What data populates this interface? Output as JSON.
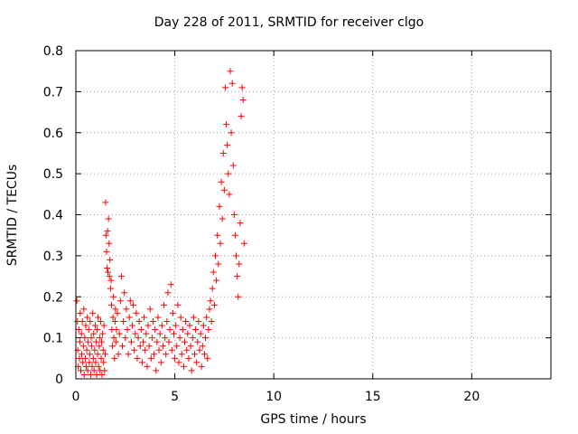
{
  "chart_data": {
    "type": "scatter",
    "title": "Day 228 of 2011, SRMTID for receiver clgo",
    "xlabel": "GPS time / hours",
    "ylabel": "SRMTID / TECUs",
    "xlim": [
      0,
      24
    ],
    "ylim": [
      0,
      0.8
    ],
    "xticks": [
      0,
      5,
      10,
      15,
      20
    ],
    "yticks": [
      0,
      0.1,
      0.2,
      0.3,
      0.4,
      0.5,
      0.6,
      0.7,
      0.8
    ],
    "grid": true,
    "legend": "none",
    "marker": "+",
    "series_color": "#ff0000",
    "points": [
      [
        0.05,
        0.19
      ],
      [
        0.08,
        0.14
      ],
      [
        0.1,
        0.07
      ],
      [
        0.12,
        0.03
      ],
      [
        0.15,
        0.12
      ],
      [
        0.18,
        0.05
      ],
      [
        0.2,
        0.09
      ],
      [
        0.22,
        0.16
      ],
      [
        0.25,
        0.02
      ],
      [
        0.28,
        0.11
      ],
      [
        0.3,
        0.06
      ],
      [
        0.33,
        0.14
      ],
      [
        0.35,
        0.04
      ],
      [
        0.38,
        0.08
      ],
      [
        0.4,
        0.17
      ],
      [
        0.42,
        0.01
      ],
      [
        0.45,
        0.1
      ],
      [
        0.48,
        0.05
      ],
      [
        0.5,
        0.13
      ],
      [
        0.52,
        0.03
      ],
      [
        0.55,
        0.07
      ],
      [
        0.58,
        0.15
      ],
      [
        0.6,
        0.02
      ],
      [
        0.62,
        0.09
      ],
      [
        0.65,
        0.12
      ],
      [
        0.68,
        0.04
      ],
      [
        0.7,
        0.06
      ],
      [
        0.72,
        0.14
      ],
      [
        0.75,
        0.01
      ],
      [
        0.78,
        0.1
      ],
      [
        0.8,
        0.08
      ],
      [
        0.82,
        0.03
      ],
      [
        0.85,
        0.16
      ],
      [
        0.88,
        0.05
      ],
      [
        0.9,
        0.11
      ],
      [
        0.92,
        0.02
      ],
      [
        0.95,
        0.07
      ],
      [
        0.98,
        0.13
      ],
      [
        1.0,
        0.04
      ],
      [
        1.02,
        0.09
      ],
      [
        1.05,
        0.01
      ],
      [
        1.08,
        0.12
      ],
      [
        1.1,
        0.06
      ],
      [
        1.12,
        0.15
      ],
      [
        1.15,
        0.03
      ],
      [
        1.18,
        0.08
      ],
      [
        1.2,
        0.1
      ],
      [
        1.22,
        0.02
      ],
      [
        1.25,
        0.14
      ],
      [
        1.28,
        0.05
      ],
      [
        1.3,
        0.09
      ],
      [
        1.32,
        0.01
      ],
      [
        1.35,
        0.11
      ],
      [
        1.38,
        0.07
      ],
      [
        1.4,
        0.04
      ],
      [
        1.42,
        0.13
      ],
      [
        1.45,
        0.02
      ],
      [
        1.48,
        0.06
      ],
      [
        1.5,
        0.43
      ],
      [
        1.52,
        0.35
      ],
      [
        1.55,
        0.31
      ],
      [
        1.58,
        0.27
      ],
      [
        1.6,
        0.36
      ],
      [
        1.62,
        0.26
      ],
      [
        1.65,
        0.39
      ],
      [
        1.68,
        0.33
      ],
      [
        1.7,
        0.25
      ],
      [
        1.72,
        0.29
      ],
      [
        1.75,
        0.22
      ],
      [
        1.78,
        0.24
      ],
      [
        1.8,
        0.18
      ],
      [
        1.82,
        0.12
      ],
      [
        1.85,
        0.08
      ],
      [
        1.88,
        0.15
      ],
      [
        1.9,
        0.2
      ],
      [
        1.92,
        0.1
      ],
      [
        1.95,
        0.05
      ],
      [
        1.98,
        0.14
      ],
      [
        2.0,
        0.17
      ],
      [
        2.02,
        0.09
      ],
      [
        2.05,
        0.12
      ],
      [
        2.1,
        0.16
      ],
      [
        2.15,
        0.06
      ],
      [
        2.2,
        0.11
      ],
      [
        2.25,
        0.19
      ],
      [
        2.3,
        0.25
      ],
      [
        2.35,
        0.08
      ],
      [
        2.4,
        0.14
      ],
      [
        2.45,
        0.21
      ],
      [
        2.5,
        0.1
      ],
      [
        2.55,
        0.17
      ],
      [
        2.6,
        0.12
      ],
      [
        2.65,
        0.06
      ],
      [
        2.7,
        0.15
      ],
      [
        2.75,
        0.19
      ],
      [
        2.8,
        0.09
      ],
      [
        2.85,
        0.13
      ],
      [
        2.9,
        0.18
      ],
      [
        2.95,
        0.07
      ],
      [
        3.0,
        0.11
      ],
      [
        3.05,
        0.16
      ],
      [
        3.1,
        0.05
      ],
      [
        3.15,
        0.1
      ],
      [
        3.2,
        0.14
      ],
      [
        3.25,
        0.08
      ],
      [
        3.3,
        0.12
      ],
      [
        3.35,
        0.04
      ],
      [
        3.4,
        0.09
      ],
      [
        3.45,
        0.15
      ],
      [
        3.5,
        0.07
      ],
      [
        3.55,
        0.11
      ],
      [
        3.6,
        0.03
      ],
      [
        3.65,
        0.13
      ],
      [
        3.7,
        0.08
      ],
      [
        3.75,
        0.17
      ],
      [
        3.8,
        0.05
      ],
      [
        3.85,
        0.1
      ],
      [
        3.9,
        0.14
      ],
      [
        3.95,
        0.06
      ],
      [
        4.0,
        0.12
      ],
      [
        4.05,
        0.02
      ],
      [
        4.1,
        0.09
      ],
      [
        4.15,
        0.15
      ],
      [
        4.2,
        0.07
      ],
      [
        4.25,
        0.11
      ],
      [
        4.3,
        0.04
      ],
      [
        4.35,
        0.13
      ],
      [
        4.4,
        0.08
      ],
      [
        4.45,
        0.18
      ],
      [
        4.5,
        0.1
      ],
      [
        4.55,
        0.06
      ],
      [
        4.6,
        0.14
      ],
      [
        4.65,
        0.21
      ],
      [
        4.7,
        0.09
      ],
      [
        4.75,
        0.12
      ],
      [
        4.8,
        0.23
      ],
      [
        4.85,
        0.07
      ],
      [
        4.9,
        0.16
      ],
      [
        4.95,
        0.11
      ],
      [
        5.0,
        0.05
      ],
      [
        5.05,
        0.13
      ],
      [
        5.1,
        0.08
      ],
      [
        5.15,
        0.18
      ],
      [
        5.2,
        0.04
      ],
      [
        5.25,
        0.1
      ],
      [
        5.3,
        0.15
      ],
      [
        5.35,
        0.06
      ],
      [
        5.4,
        0.12
      ],
      [
        5.45,
        0.03
      ],
      [
        5.5,
        0.09
      ],
      [
        5.55,
        0.14
      ],
      [
        5.6,
        0.07
      ],
      [
        5.65,
        0.11
      ],
      [
        5.7,
        0.05
      ],
      [
        5.75,
        0.13
      ],
      [
        5.8,
        0.08
      ],
      [
        5.85,
        0.02
      ],
      [
        5.9,
        0.1
      ],
      [
        5.95,
        0.15
      ],
      [
        6.0,
        0.06
      ],
      [
        6.05,
        0.12
      ],
      [
        6.1,
        0.04
      ],
      [
        6.15,
        0.09
      ],
      [
        6.2,
        0.14
      ],
      [
        6.25,
        0.07
      ],
      [
        6.3,
        0.11
      ],
      [
        6.35,
        0.03
      ],
      [
        6.4,
        0.08
      ],
      [
        6.45,
        0.13
      ],
      [
        6.5,
        0.06
      ],
      [
        6.55,
        0.1
      ],
      [
        6.6,
        0.15
      ],
      [
        6.65,
        0.05
      ],
      [
        6.7,
        0.12
      ],
      [
        6.75,
        0.17
      ],
      [
        6.8,
        0.19
      ],
      [
        6.85,
        0.14
      ],
      [
        6.9,
        0.22
      ],
      [
        6.95,
        0.26
      ],
      [
        7.0,
        0.18
      ],
      [
        7.05,
        0.3
      ],
      [
        7.1,
        0.24
      ],
      [
        7.15,
        0.35
      ],
      [
        7.2,
        0.28
      ],
      [
        7.25,
        0.42
      ],
      [
        7.3,
        0.33
      ],
      [
        7.35,
        0.48
      ],
      [
        7.4,
        0.39
      ],
      [
        7.45,
        0.55
      ],
      [
        7.5,
        0.46
      ],
      [
        7.55,
        0.71
      ],
      [
        7.6,
        0.62
      ],
      [
        7.65,
        0.57
      ],
      [
        7.7,
        0.5
      ],
      [
        7.75,
        0.45
      ],
      [
        7.8,
        0.75
      ],
      [
        7.85,
        0.6
      ],
      [
        7.9,
        0.72
      ],
      [
        7.95,
        0.52
      ],
      [
        8.0,
        0.4
      ],
      [
        8.05,
        0.35
      ],
      [
        8.1,
        0.3
      ],
      [
        8.15,
        0.25
      ],
      [
        8.2,
        0.2
      ],
      [
        8.25,
        0.28
      ],
      [
        8.3,
        0.38
      ],
      [
        8.35,
        0.64
      ],
      [
        8.4,
        0.71
      ],
      [
        8.45,
        0.68
      ],
      [
        8.5,
        0.33
      ]
    ]
  }
}
